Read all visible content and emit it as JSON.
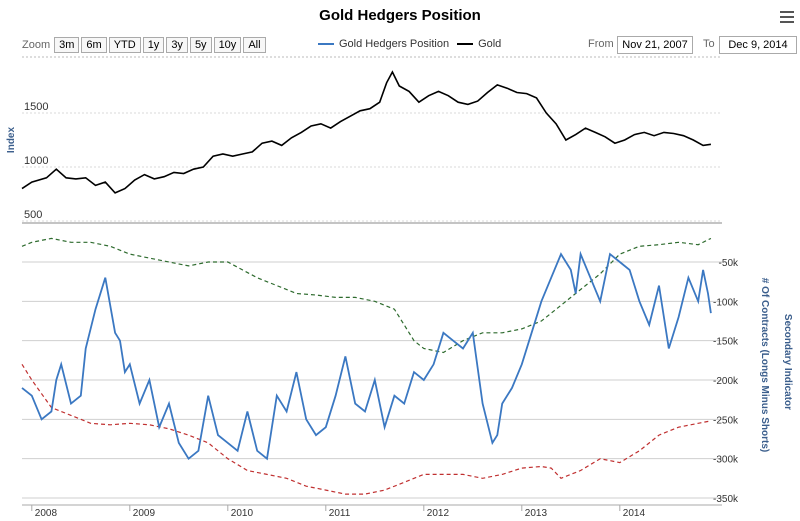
{
  "title": "Gold Hedgers Position",
  "menu_icon": "hamburger-menu-icon",
  "zoom": {
    "label": "Zoom",
    "buttons": [
      "3m",
      "6m",
      "YTD",
      "1y",
      "3y",
      "5y",
      "10y",
      "All"
    ]
  },
  "legend": [
    {
      "name": "Gold Hedgers Position",
      "color": "#3b78c2"
    },
    {
      "name": "Gold",
      "color": "#000000"
    }
  ],
  "range": {
    "from_label": "From",
    "from_value": "Nov 21, 2007",
    "to_label": "To",
    "to_value": "Dec 9, 2014"
  },
  "chart_data": [
    {
      "type": "line",
      "ylabel": "Index",
      "ylim": [
        500,
        2000
      ],
      "yticks": [
        "1500",
        "1000",
        "500"
      ],
      "grid": true,
      "series": [
        {
          "name": "Gold",
          "color": "#000000",
          "x": [
            2007.9,
            2008.0,
            2008.15,
            2008.25,
            2008.35,
            2008.45,
            2008.55,
            2008.65,
            2008.75,
            2008.85,
            2008.95,
            2009.05,
            2009.15,
            2009.25,
            2009.35,
            2009.45,
            2009.55,
            2009.65,
            2009.75,
            2009.85,
            2009.95,
            2010.05,
            2010.15,
            2010.25,
            2010.35,
            2010.45,
            2010.55,
            2010.65,
            2010.75,
            2010.85,
            2010.95,
            2011.05,
            2011.15,
            2011.25,
            2011.35,
            2011.45,
            2011.55,
            2011.62,
            2011.68,
            2011.75,
            2011.85,
            2011.95,
            2012.05,
            2012.15,
            2012.25,
            2012.35,
            2012.45,
            2012.55,
            2012.65,
            2012.75,
            2012.85,
            2012.95,
            2013.05,
            2013.15,
            2013.25,
            2013.35,
            2013.45,
            2013.55,
            2013.65,
            2013.75,
            2013.85,
            2013.95,
            2014.05,
            2014.15,
            2014.25,
            2014.35,
            2014.45,
            2014.55,
            2014.65,
            2014.75,
            2014.85,
            2014.93
          ],
          "y": [
            800,
            860,
            900,
            980,
            900,
            890,
            900,
            830,
            860,
            760,
            800,
            880,
            930,
            890,
            910,
            950,
            940,
            980,
            1000,
            1100,
            1120,
            1100,
            1120,
            1140,
            1220,
            1240,
            1200,
            1270,
            1320,
            1380,
            1400,
            1360,
            1420,
            1470,
            1520,
            1540,
            1600,
            1780,
            1880,
            1750,
            1700,
            1600,
            1660,
            1700,
            1660,
            1600,
            1580,
            1610,
            1690,
            1760,
            1730,
            1690,
            1680,
            1640,
            1500,
            1400,
            1250,
            1300,
            1360,
            1320,
            1280,
            1220,
            1250,
            1300,
            1320,
            1290,
            1320,
            1310,
            1290,
            1250,
            1200,
            1210
          ]
        }
      ]
    },
    {
      "type": "line",
      "ylabel": "# Of Contracts (Longs Minus Shorts)",
      "y2label": "Secondary Indicator",
      "ylim": [
        -350000,
        -25000
      ],
      "yticks": [
        "-50k",
        "-100k",
        "-150k",
        "-200k",
        "-250k",
        "-300k",
        "-350k"
      ],
      "xticks": [
        "2008",
        "2009",
        "2010",
        "2011",
        "2012",
        "2013",
        "2014"
      ],
      "grid": true,
      "series": [
        {
          "name": "Gold Hedgers Position",
          "color": "#3b78c2",
          "x": [
            2007.9,
            2008.0,
            2008.1,
            2008.2,
            2008.25,
            2008.3,
            2008.4,
            2008.5,
            2008.55,
            2008.65,
            2008.75,
            2008.85,
            2008.9,
            2008.95,
            2009.0,
            2009.1,
            2009.2,
            2009.3,
            2009.4,
            2009.5,
            2009.6,
            2009.7,
            2009.8,
            2009.9,
            2010.0,
            2010.1,
            2010.2,
            2010.3,
            2010.4,
            2010.5,
            2010.6,
            2010.7,
            2010.8,
            2010.9,
            2011.0,
            2011.1,
            2011.2,
            2011.3,
            2011.4,
            2011.5,
            2011.6,
            2011.7,
            2011.8,
            2011.9,
            2012.0,
            2012.1,
            2012.2,
            2012.3,
            2012.4,
            2012.5,
            2012.6,
            2012.7,
            2012.75,
            2012.8,
            2012.9,
            2013.0,
            2013.1,
            2013.2,
            2013.3,
            2013.4,
            2013.5,
            2013.55,
            2013.6,
            2013.7,
            2013.8,
            2013.9,
            2014.0,
            2014.1,
            2014.2,
            2014.3,
            2014.4,
            2014.5,
            2014.6,
            2014.7,
            2014.8,
            2014.85,
            2014.9,
            2014.93
          ],
          "y": [
            -210000,
            -220000,
            -250000,
            -240000,
            -200000,
            -180000,
            -230000,
            -220000,
            -160000,
            -110000,
            -70000,
            -140000,
            -150000,
            -190000,
            -180000,
            -230000,
            -200000,
            -260000,
            -230000,
            -280000,
            -300000,
            -290000,
            -220000,
            -270000,
            -280000,
            -290000,
            -240000,
            -290000,
            -300000,
            -220000,
            -240000,
            -190000,
            -250000,
            -270000,
            -260000,
            -220000,
            -170000,
            -230000,
            -240000,
            -200000,
            -260000,
            -220000,
            -230000,
            -190000,
            -200000,
            -180000,
            -140000,
            -150000,
            -160000,
            -140000,
            -230000,
            -280000,
            -270000,
            -230000,
            -210000,
            -180000,
            -140000,
            -100000,
            -70000,
            -40000,
            -60000,
            -90000,
            -40000,
            -70000,
            -100000,
            -40000,
            -50000,
            -60000,
            -100000,
            -130000,
            -80000,
            -160000,
            -120000,
            -70000,
            -100000,
            -60000,
            -90000,
            -115000
          ]
        },
        {
          "name": "Secondary Indicator (green)",
          "color": "#2e6b2e",
          "x": [
            2007.9,
            2008.0,
            2008.2,
            2008.4,
            2008.6,
            2008.8,
            2009.0,
            2009.2,
            2009.4,
            2009.6,
            2009.8,
            2010.0,
            2010.15,
            2010.3,
            2010.5,
            2010.7,
            2010.9,
            2011.1,
            2011.3,
            2011.5,
            2011.7,
            2011.8,
            2011.9,
            2012.0,
            2012.2,
            2012.4,
            2012.6,
            2012.8,
            2013.0,
            2013.2,
            2013.4,
            2013.6,
            2013.8,
            2014.0,
            2014.2,
            2014.4,
            2014.6,
            2014.8,
            2014.93
          ],
          "y": [
            -30000,
            -25000,
            -20000,
            -25000,
            -25000,
            -30000,
            -40000,
            -45000,
            -50000,
            -55000,
            -50000,
            -50000,
            -60000,
            -70000,
            -80000,
            -90000,
            -92000,
            -95000,
            -95000,
            -100000,
            -110000,
            -130000,
            -150000,
            -160000,
            -165000,
            -150000,
            -140000,
            -140000,
            -135000,
            -125000,
            -105000,
            -85000,
            -65000,
            -40000,
            -30000,
            -28000,
            -25000,
            -28000,
            -20000
          ]
        },
        {
          "name": "Secondary Indicator (red)",
          "color": "#c03030",
          "x": [
            2007.9,
            2008.0,
            2008.2,
            2008.4,
            2008.6,
            2008.8,
            2009.0,
            2009.2,
            2009.4,
            2009.6,
            2009.8,
            2010.0,
            2010.2,
            2010.4,
            2010.6,
            2010.8,
            2011.0,
            2011.2,
            2011.4,
            2011.6,
            2011.8,
            2012.0,
            2012.2,
            2012.4,
            2012.6,
            2012.8,
            2013.0,
            2013.2,
            2013.3,
            2013.4,
            2013.6,
            2013.8,
            2014.0,
            2014.2,
            2014.4,
            2014.6,
            2014.8,
            2014.93
          ],
          "y": [
            -180000,
            -200000,
            -235000,
            -245000,
            -255000,
            -257000,
            -255000,
            -257000,
            -262000,
            -270000,
            -280000,
            -300000,
            -315000,
            -320000,
            -325000,
            -335000,
            -340000,
            -345000,
            -345000,
            -340000,
            -330000,
            -320000,
            -320000,
            -320000,
            -325000,
            -320000,
            -312000,
            -310000,
            -312000,
            -325000,
            -315000,
            -300000,
            -305000,
            -290000,
            -270000,
            -260000,
            -255000,
            -252000
          ]
        }
      ]
    }
  ]
}
